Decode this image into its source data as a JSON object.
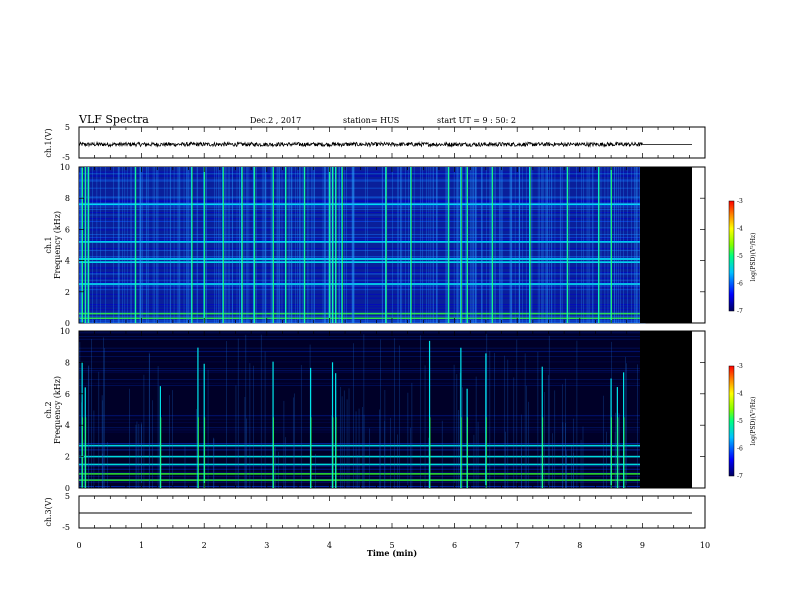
{
  "header": {
    "title": "VLF Spectra",
    "date": "Dec.2 , 2017",
    "station": "station= HUS",
    "start": "start  UT =   9 : 50: 2"
  },
  "colors": {
    "background_deep": "#000033",
    "low": "#0000c8",
    "mid": "#0080ff",
    "cyan": "#00ffff",
    "green": "#33ff33",
    "colorbar_top": "#ff0000"
  },
  "chart_data": [
    {
      "type": "line",
      "panel": "ch1-waveform",
      "ylabel": "ch.1(V)",
      "ylim": [
        -5,
        5
      ],
      "yticks": [
        "5",
        "-5"
      ],
      "series": [
        {
          "values_approx": "broadband noise about -0.6 V, amplitude about 0.5 V, ending at 9 min"
        }
      ],
      "xlim": [
        0,
        10
      ]
    },
    {
      "type": "heatmap",
      "panel": "ch1-spectrogram",
      "ylabel": [
        "ch.1",
        "Frequency (kHz)"
      ],
      "ylim": [
        0,
        10
      ],
      "yticks": [
        "0",
        "2",
        "4",
        "6",
        "8",
        "10"
      ],
      "xlim": [
        0,
        10
      ],
      "data_end_min": 9.05,
      "colorbar": {
        "label": "log(PSD)(V²/Hz)",
        "range": [
          -7,
          -3
        ],
        "ticks": [
          "-3",
          "-4",
          "-5",
          "-6",
          "-7"
        ]
      },
      "bright_bands_khz": [
        0.3,
        0.6,
        2.5,
        3.9,
        4.1,
        5.2,
        7.6
      ],
      "impulse_times_min": [
        0.05,
        0.1,
        0.15,
        0.9,
        1.8,
        2.0,
        2.3,
        2.6,
        2.8,
        3.1,
        3.3,
        3.6,
        4.0,
        4.05,
        4.1,
        4.2,
        4.9,
        5.3,
        5.9,
        6.1,
        6.2,
        6.6,
        7.2,
        7.8,
        8.3,
        8.5
      ]
    },
    {
      "type": "heatmap",
      "panel": "ch2-spectrogram",
      "ylabel": [
        "ch.2",
        "Frequency (kHz)"
      ],
      "ylim": [
        0,
        10
      ],
      "yticks": [
        "0",
        "2",
        "4",
        "6",
        "8",
        "10"
      ],
      "xlim": [
        0,
        10
      ],
      "data_end_min": 9.05,
      "colorbar": {
        "label": "log(PSD)(V²/Hz)",
        "range": [
          -7,
          -3
        ],
        "ticks": [
          "-3",
          "-4",
          "-5",
          "-6",
          "-7"
        ]
      },
      "bright_bands_khz": [
        0.5,
        0.9,
        1.5,
        2.0,
        2.7
      ],
      "impulse_times_min": [
        0.05,
        0.1,
        1.3,
        1.9,
        2.0,
        3.1,
        3.7,
        4.05,
        4.1,
        5.6,
        6.1,
        6.2,
        6.5,
        7.4,
        8.5,
        8.6,
        8.7
      ]
    },
    {
      "type": "line",
      "panel": "ch3-waveform",
      "ylabel": "ch.3(V)",
      "ylim": [
        -5,
        5
      ],
      "yticks": [
        "5",
        "-5"
      ],
      "series": [
        {
          "values_approx": "flat at about -1.5 V"
        }
      ],
      "xlim": [
        0,
        10
      ],
      "xlabel": "Time (min)",
      "xticks": [
        "0",
        "1",
        "2",
        "3",
        "4",
        "5",
        "6",
        "7",
        "8",
        "9",
        "10"
      ]
    }
  ]
}
